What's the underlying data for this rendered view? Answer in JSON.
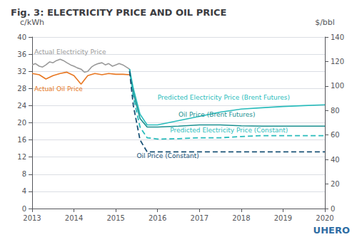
{
  "chart_data": {
    "type": "line",
    "title": "Fig. 3: ELECTRICITY PRICE AND OIL PRICE",
    "ylabel": "c/kWh",
    "y2label": "$/bbl",
    "xlim": [
      2013,
      2020
    ],
    "xticks": [
      2013,
      2014,
      2015,
      2016,
      2017,
      2018,
      2019,
      2020
    ],
    "ylim": [
      0,
      40
    ],
    "yticks": [
      0,
      4,
      8,
      12,
      16,
      20,
      24,
      28,
      32,
      36,
      40
    ],
    "y2lim": [
      0,
      140
    ],
    "y2ticks": [
      0,
      20,
      40,
      60,
      80,
      100,
      120,
      140
    ],
    "grid": true,
    "series": [
      {
        "color": "#999999",
        "line_style": "solid",
        "x": [
          2013.0,
          2013.08,
          2013.17,
          2013.25,
          2013.33,
          2013.42,
          2013.5,
          2013.58,
          2013.67,
          2013.75,
          2013.83,
          2013.92,
          2014.0,
          2014.08,
          2014.17,
          2014.25,
          2014.33,
          2014.42,
          2014.5,
          2014.58,
          2014.67,
          2014.75,
          2014.83,
          2014.92,
          2015.0,
          2015.08,
          2015.17,
          2015.25,
          2015.33
        ],
        "values": [
          33.5,
          33.8,
          33.2,
          33.0,
          33.5,
          34.2,
          34.0,
          34.5,
          34.8,
          34.5,
          34.0,
          33.5,
          33.2,
          32.8,
          32.5,
          31.8,
          32.0,
          33.0,
          33.5,
          33.8,
          34.0,
          33.5,
          33.8,
          33.2,
          33.5,
          33.8,
          33.5,
          33.0,
          32.5
        ]
      },
      {
        "color": "#e87722",
        "line_style": "solid",
        "x": [
          2013.0,
          2013.17,
          2013.33,
          2013.5,
          2013.67,
          2013.83,
          2014.0,
          2014.17,
          2014.33,
          2014.5,
          2014.67,
          2014.83,
          2015.0,
          2015.17,
          2015.33
        ],
        "values": [
          31.5,
          31.2,
          30.2,
          31.0,
          31.5,
          31.8,
          31.0,
          29.0,
          31.0,
          31.5,
          31.2,
          31.5,
          31.3,
          31.3,
          31.2
        ]
      },
      {
        "color": "#2abcbc",
        "line_style": "solid",
        "x": [
          2015.33,
          2015.42,
          2015.58,
          2015.75,
          2016.0,
          2016.5,
          2017.0,
          2017.5,
          2018.0,
          2018.5,
          2019.0,
          2019.5,
          2020.0
        ],
        "values": [
          32.5,
          28.0,
          22.0,
          19.5,
          19.5,
          20.5,
          21.5,
          22.5,
          23.2,
          23.5,
          23.8,
          24.0,
          24.2
        ]
      },
      {
        "color": "#1a8f8f",
        "line_style": "solid",
        "x": [
          2015.33,
          2015.42,
          2015.58,
          2015.75,
          2016.0,
          2016.5,
          2017.0,
          2017.5,
          2018.0,
          2018.5,
          2019.0,
          2019.5,
          2020.0
        ],
        "values": [
          32.0,
          27.0,
          21.0,
          19.0,
          19.0,
          19.2,
          19.5,
          19.5,
          19.3,
          19.2,
          19.2,
          19.2,
          19.2
        ]
      },
      {
        "color": "#2abcbc",
        "line_style": "dashed",
        "x": [
          2015.33,
          2015.42,
          2015.58,
          2015.75,
          2016.0,
          2016.5,
          2017.0,
          2017.5,
          2018.0,
          2018.5,
          2019.0,
          2019.5,
          2020.0
        ],
        "values": [
          32.5,
          26.0,
          19.0,
          16.5,
          16.2,
          16.3,
          16.5,
          16.5,
          16.8,
          17.0,
          17.0,
          17.0,
          17.0
        ]
      },
      {
        "color": "#1a5276",
        "line_style": "dashed",
        "x": [
          2015.33,
          2015.42,
          2015.58,
          2015.75,
          2016.0,
          2016.5,
          2017.0,
          2017.5,
          2018.0,
          2018.5,
          2019.0,
          2019.5,
          2020.0
        ],
        "values": [
          32.0,
          24.0,
          16.0,
          13.2,
          13.2,
          13.2,
          13.2,
          13.2,
          13.2,
          13.2,
          13.2,
          13.2,
          13.2
        ]
      }
    ],
    "annotations": [
      {
        "x": 2013.05,
        "y": 35.8,
        "text": "Actual Electricity Price",
        "color": "#999999"
      },
      {
        "x": 2013.05,
        "y": 27.2,
        "text": "Actual Oil Price",
        "color": "#e87722"
      },
      {
        "x": 2016.0,
        "y": 25.2,
        "text": "Predicted Electricity Price (Brent Futures)",
        "color": "#2abcbc"
      },
      {
        "x": 2016.5,
        "y": 21.2,
        "text": "Oil Price (Brent Futures)",
        "color": "#1a8f8f"
      },
      {
        "x": 2016.3,
        "y": 17.5,
        "text": "Predicted Electricity Price (Constant)",
        "color": "#2abcbc"
      },
      {
        "x": 2015.5,
        "y": 11.5,
        "text": "Oil Price (Constant)",
        "color": "#1a5276"
      },
      {
        "text": "UHERO",
        "color": "#2f6da4"
      }
    ]
  }
}
